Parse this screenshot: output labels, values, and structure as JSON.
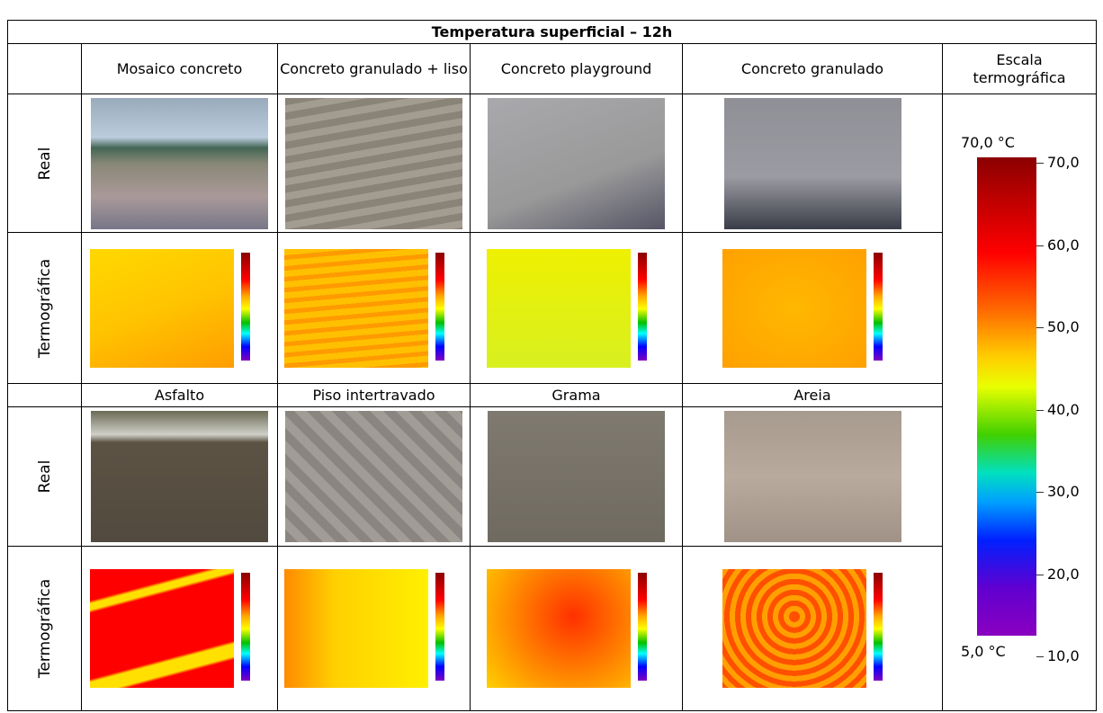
{
  "table": {
    "title": "Temperatura superficial – 12h",
    "header": [
      "Mosaico concreto",
      "Concreto granulado + liso",
      "Concreto playground",
      "Concreto granulado"
    ],
    "scale_header": "Escala termográfica",
    "row_labels": [
      "Real",
      "Termográfica",
      "Real",
      "Termográfica"
    ],
    "second_header": [
      "Asfalto",
      "Piso intertravado",
      "Grama",
      "Areia"
    ],
    "scale": {
      "max_label": "70,0 °C",
      "min_label": "5,0 °C",
      "ticks": [
        "70,0",
        "60,0",
        "50,0",
        "40,0",
        "30,0",
        "20,0",
        "10,0"
      ]
    }
  }
}
